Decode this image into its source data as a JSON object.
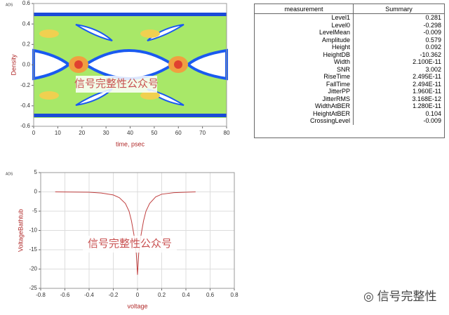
{
  "chart_data": [
    {
      "type": "eye-diagram",
      "corner_label": "ADS",
      "y_label": "Density",
      "x_label": "time, psec",
      "xlim": [
        0,
        80
      ],
      "xticks": [
        0,
        10,
        20,
        30,
        40,
        50,
        60,
        70,
        80
      ],
      "ylim": [
        -0.6,
        0.6
      ],
      "yticks": [
        0.6,
        0.4,
        0.2,
        {
          "value": 0,
          "label": "0.0"
        },
        -0.2,
        -0.4,
        -0.6
      ],
      "grid": false,
      "watermark": "信号完整性公众号"
    },
    {
      "type": "line",
      "corner_label": "ADS",
      "y_label": "VoltageBathtub",
      "x_label": "voltage",
      "x": [
        -0.68,
        -0.4,
        -0.3,
        -0.2,
        -0.15,
        -0.1,
        -0.07,
        -0.05,
        -0.03,
        -0.01,
        0,
        0.01,
        0.03,
        0.05,
        0.07,
        0.1,
        0.15,
        0.2,
        0.3,
        0.48
      ],
      "values": [
        0,
        -0.1,
        -0.3,
        -0.8,
        -1.5,
        -3,
        -5,
        -7.5,
        -11,
        -16,
        -21.5,
        -16,
        -11,
        -7.5,
        -5,
        -3,
        -1.3,
        -0.6,
        -0.2,
        0
      ],
      "color": "#c04040",
      "xlim": [
        -0.8,
        0.8
      ],
      "xticks": [
        -0.8,
        -0.6,
        -0.4,
        -0.2,
        0,
        0.2,
        0.4,
        0.6,
        0.8
      ],
      "ylim": [
        -25,
        5
      ],
      "yticks": [
        5,
        0,
        -5,
        -10,
        -15,
        -20,
        -25
      ],
      "grid": true,
      "watermark": "信号完整性公众号"
    }
  ],
  "table": {
    "header": [
      "measurement",
      "Summary"
    ],
    "rows": [
      [
        "Level1",
        "0.281"
      ],
      [
        "Level0",
        "-0.298"
      ],
      [
        "LevelMean",
        "-0.009"
      ],
      [
        "Amplitude",
        "0.579"
      ],
      [
        "Height",
        "0.092"
      ],
      [
        "HeightDB",
        "-10.362"
      ],
      [
        "Width",
        "2.100E-11"
      ],
      [
        "SNR",
        "3.002"
      ],
      [
        "RiseTime",
        "2.495E-11"
      ],
      [
        "FallTime",
        "2.494E-11"
      ],
      [
        "JitterPP",
        "1.960E-11"
      ],
      [
        "JitterRMS",
        "3.168E-12"
      ],
      [
        "WidthAtBER",
        "1.280E-11"
      ],
      [
        "HeightAtBER",
        "0.104"
      ],
      [
        "CrossingLevel",
        "-0.009"
      ]
    ]
  },
  "logo_text": "信号完整性"
}
